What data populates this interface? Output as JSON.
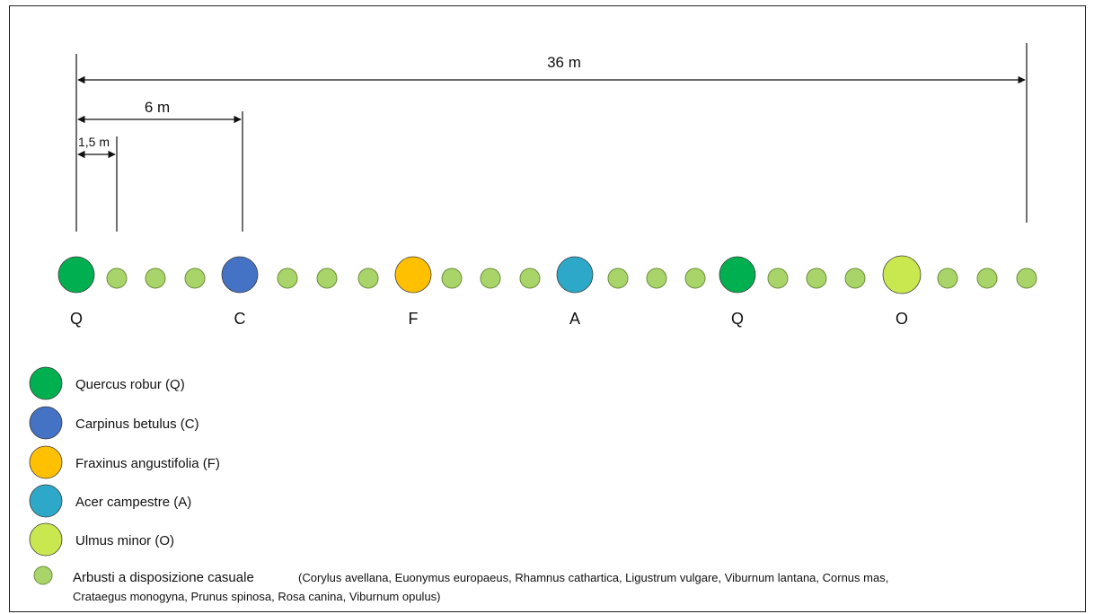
{
  "dimensions": {
    "total": "36 m",
    "tree_spacing": "6 m",
    "shrub_spacing": "1,5 m"
  },
  "row": [
    {
      "kind": "tree",
      "letter": "Q",
      "color": "#00b050"
    },
    {
      "kind": "shrub"
    },
    {
      "kind": "shrub"
    },
    {
      "kind": "shrub"
    },
    {
      "kind": "tree",
      "letter": "C",
      "color": "#4472c4"
    },
    {
      "kind": "shrub"
    },
    {
      "kind": "shrub"
    },
    {
      "kind": "shrub"
    },
    {
      "kind": "tree",
      "letter": "F",
      "color": "#ffc000"
    },
    {
      "kind": "shrub"
    },
    {
      "kind": "shrub"
    },
    {
      "kind": "shrub"
    },
    {
      "kind": "tree",
      "letter": "A",
      "color": "#2ea8c8"
    },
    {
      "kind": "shrub"
    },
    {
      "kind": "shrub"
    },
    {
      "kind": "shrub"
    },
    {
      "kind": "tree",
      "letter": "Q",
      "color": "#00b050"
    },
    {
      "kind": "shrub"
    },
    {
      "kind": "shrub"
    },
    {
      "kind": "shrub"
    },
    {
      "kind": "tree",
      "letter": "O",
      "color": "#c9e84f"
    },
    {
      "kind": "shrub"
    },
    {
      "kind": "shrub"
    },
    {
      "kind": "shrub"
    }
  ],
  "shrub_color": "#a9d46a",
  "legend": {
    "items": [
      {
        "label": "Quercus robur (Q)",
        "color": "#00b050"
      },
      {
        "label": "Carpinus betulus (C)",
        "color": "#4472c4"
      },
      {
        "label": "Fraxinus angustifolia (F)",
        "color": "#ffc000"
      },
      {
        "label": "Acer campestre (A)",
        "color": "#2ea8c8"
      },
      {
        "label": "Ulmus minor (O)",
        "color": "#c9e84f"
      }
    ],
    "shrub_label": "Arbusti a disposizione casuale",
    "shrub_species_line1": "(Corylus avellana, Euonymus europaeus, Rhamnus cathartica, Ligustrum vulgare, Viburnum lantana, Cornus mas,",
    "shrub_species_line2": "Crataegus monogyna, Prunus spinosa, Rosa canina, Viburnum opulus)"
  }
}
